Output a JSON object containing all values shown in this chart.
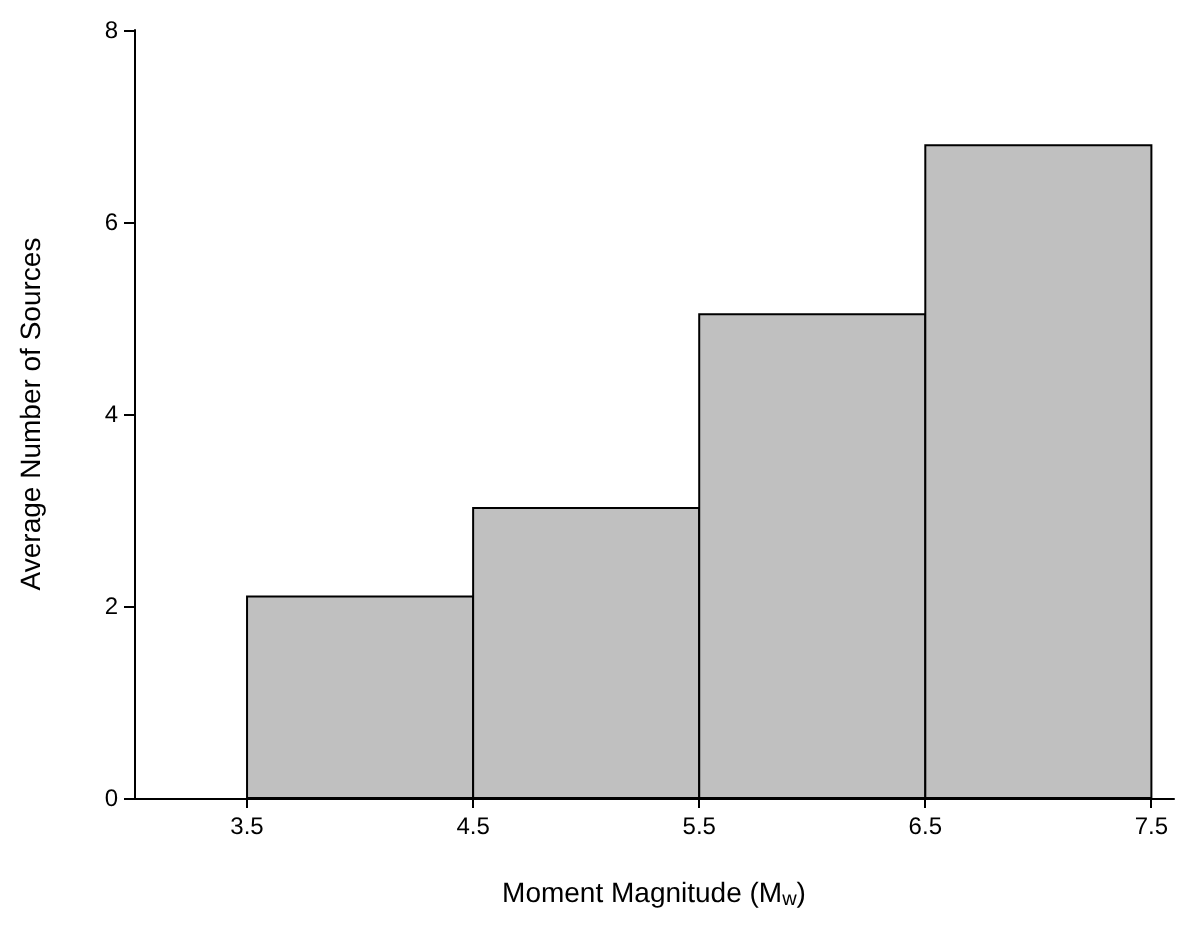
{
  "chart_data": {
    "type": "histogram",
    "xlabel": "Moment Magnitude (M$_{w}$)",
    "ylabel": "Average Number of Sources",
    "bins": [
      3.5,
      4.5,
      5.5,
      6.5,
      7.5
    ],
    "values": [
      2.1,
      3.02,
      5.04,
      6.8
    ],
    "color": "#c0c0c0",
    "xlim": [
      3,
      7.6
    ],
    "xticks": [
      3.5,
      4.5,
      5.5,
      6.5,
      7.5
    ],
    "ylim": [
      0,
      8
    ],
    "yticks": [
      0,
      2,
      4,
      6,
      8
    ],
    "grid": false
  }
}
